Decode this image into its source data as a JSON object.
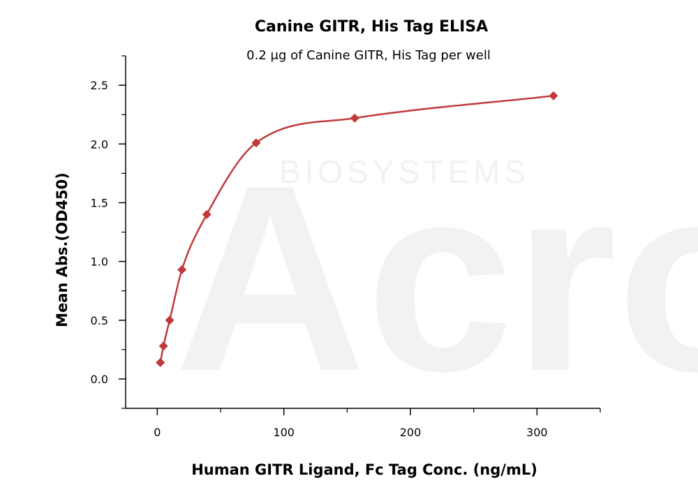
{
  "chart_data": {
    "type": "scatter",
    "title": "Canine GITR, His Tag ELISA",
    "subtitle": "0.2 μg of Canine GITR, His Tag per well",
    "xlabel": "Human GITR Ligand, Fc Tag Conc. (ng/mL)",
    "ylabel": "Mean Abs.(OD450)",
    "xlim": [
      -25,
      350
    ],
    "ylim": [
      -0.25,
      2.75
    ],
    "x_ticks": [
      0,
      100,
      200,
      300
    ],
    "y_ticks": [
      0.0,
      0.5,
      1.0,
      1.5,
      2.0,
      2.5
    ],
    "x_tick_labels": [
      "0",
      "100",
      "200",
      "300"
    ],
    "y_tick_labels": [
      "0.0",
      "0.5",
      "1.0",
      "1.5",
      "2.0",
      "2.5"
    ],
    "grid": false,
    "series": [
      {
        "color": "#c0393b",
        "marker": "diamond",
        "x": [
          2.44,
          4.88,
          9.77,
          19.5,
          39.1,
          78.1,
          156,
          313
        ],
        "y": [
          0.14,
          0.28,
          0.5,
          0.93,
          1.4,
          2.01,
          2.22,
          2.41
        ],
        "fit": "4PL"
      }
    ],
    "watermark": {
      "main": "Acro",
      "sub": "BIOSYSTEMS"
    }
  }
}
